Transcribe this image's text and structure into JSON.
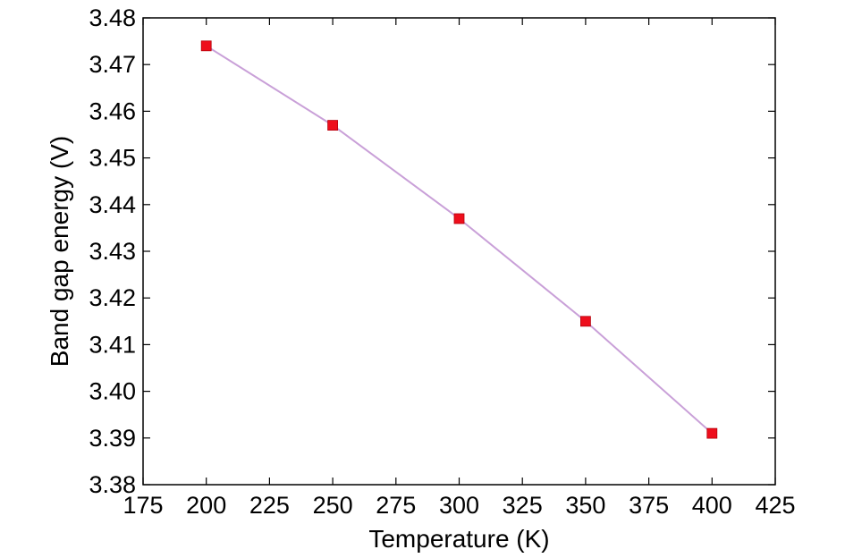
{
  "chart_data": {
    "type": "line",
    "title": "",
    "xlabel": "Temperature (K)",
    "ylabel": "Band gap energy (V)",
    "xlim": [
      175,
      425
    ],
    "ylim": [
      3.38,
      3.48
    ],
    "x_ticks": [
      "175",
      "200",
      "225",
      "250",
      "275",
      "300",
      "325",
      "350",
      "375",
      "400",
      "425"
    ],
    "y_ticks": [
      "3.38",
      "3.39",
      "3.40",
      "3.41",
      "3.42",
      "3.43",
      "3.44",
      "3.45",
      "3.46",
      "3.47",
      "3.48"
    ],
    "grid": false,
    "legend": "none",
    "series": [
      {
        "x": [
          200,
          250,
          300,
          350,
          400
        ],
        "values": [
          3.474,
          3.457,
          3.437,
          3.415,
          3.391
        ],
        "line_color": "#c9a0d8",
        "marker": "square",
        "marker_color": "#ee0e1c"
      }
    ]
  }
}
